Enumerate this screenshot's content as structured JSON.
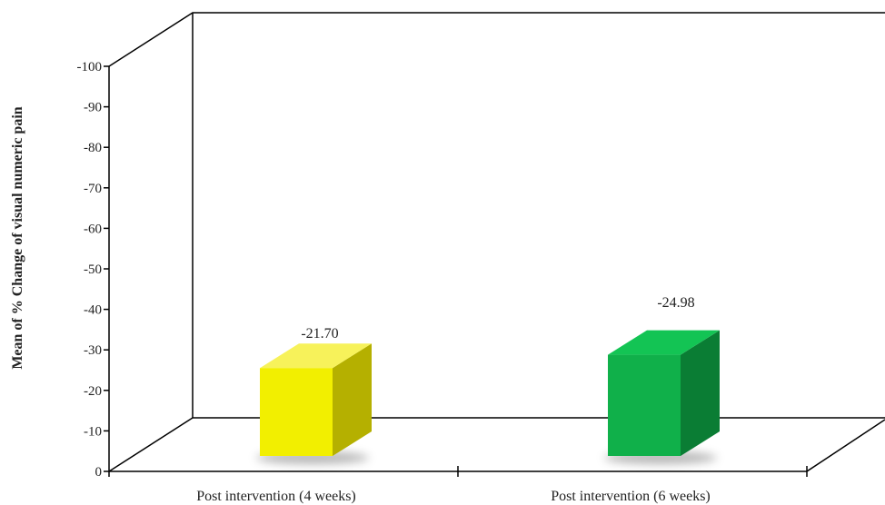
{
  "chart_data": {
    "type": "bar",
    "style": "3d",
    "categories": [
      "Post intervention (4 weeks)",
      "Post intervention (6 weeks)"
    ],
    "values": [
      -21.7,
      -24.98
    ],
    "value_labels": [
      "-21.70",
      "-24.98"
    ],
    "colors": [
      "#f2ef00",
      "#10b04a"
    ],
    "ylabel": "Mean of % Change of visual numeric pain",
    "ylim": [
      0,
      -100
    ],
    "ytick_labels": [
      "0",
      "-10",
      "-20",
      "-30",
      "-40",
      "-50",
      "-60",
      "-70",
      "-80",
      "-90",
      "-100"
    ],
    "grid": false,
    "legend": false
  }
}
